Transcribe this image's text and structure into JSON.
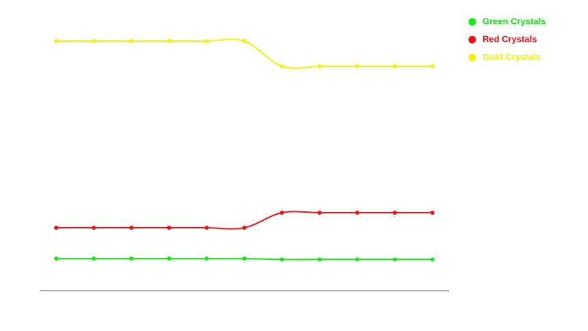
{
  "chart_data": {
    "type": "line",
    "categories": [
      null,
      null,
      null,
      null,
      null,
      null,
      null,
      null,
      null,
      null,
      null
    ],
    "series": [
      {
        "name": "Green Crystals",
        "color": "#11ee11",
        "values": [
          11.75,
          11.75,
          11.75,
          11.75,
          11.75,
          11.75,
          11.4,
          11.4,
          11.4,
          11.4,
          11.4
        ]
      },
      {
        "name": "Red Crystals",
        "color": "#ee1111",
        "values": [
          23,
          23,
          23,
          23,
          23,
          23,
          28.5,
          28.5,
          28.5,
          28.5,
          28.5
        ]
      },
      {
        "name": "Gold Crystals",
        "color": "#f4f400",
        "values": [
          91.25,
          91.25,
          91.25,
          91.25,
          91.25,
          91.25,
          82,
          82,
          82,
          82,
          82
        ]
      }
    ],
    "ylim": [
      0,
      100
    ],
    "legend": "top-right"
  }
}
